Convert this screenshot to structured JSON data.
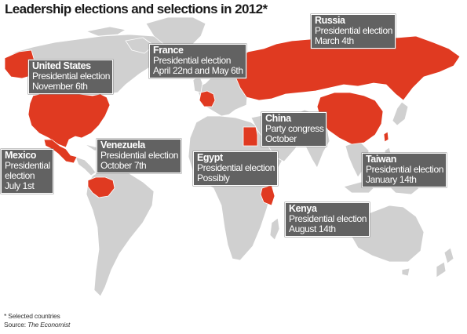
{
  "title": "Leadership elections and selections in 2012*",
  "colors": {
    "land": "#d0d0d0",
    "highlight": "#e03a21",
    "label_bg": "#626262",
    "border": "#ffffff"
  },
  "countries": [
    {
      "id": "united-states",
      "name": "United States",
      "lines": [
        "Presidential election",
        "November 6th"
      ]
    },
    {
      "id": "mexico",
      "name": "Mexico",
      "lines": [
        "Presidential",
        "election",
        "July 1st"
      ]
    },
    {
      "id": "venezuela",
      "name": "Venezuela",
      "lines": [
        "Presidential election",
        "October 7th"
      ]
    },
    {
      "id": "france",
      "name": "France",
      "lines": [
        "Presidential election",
        "April 22nd and May 6th"
      ]
    },
    {
      "id": "russia",
      "name": "Russia",
      "lines": [
        "Presidential election",
        "March 4th"
      ]
    },
    {
      "id": "china",
      "name": "China",
      "lines": [
        "Party congress",
        "October"
      ]
    },
    {
      "id": "egypt",
      "name": "Egypt",
      "lines": [
        "Presidential election",
        "Possibly"
      ]
    },
    {
      "id": "taiwan",
      "name": "Taiwan",
      "lines": [
        "Presidential election",
        "January 14th"
      ]
    },
    {
      "id": "kenya",
      "name": "Kenya",
      "lines": [
        "Presidential election",
        "August 14th"
      ]
    }
  ],
  "footnote": {
    "note": "* Selected countries",
    "source_prefix": "Source:",
    "source_name": "The Economist"
  }
}
